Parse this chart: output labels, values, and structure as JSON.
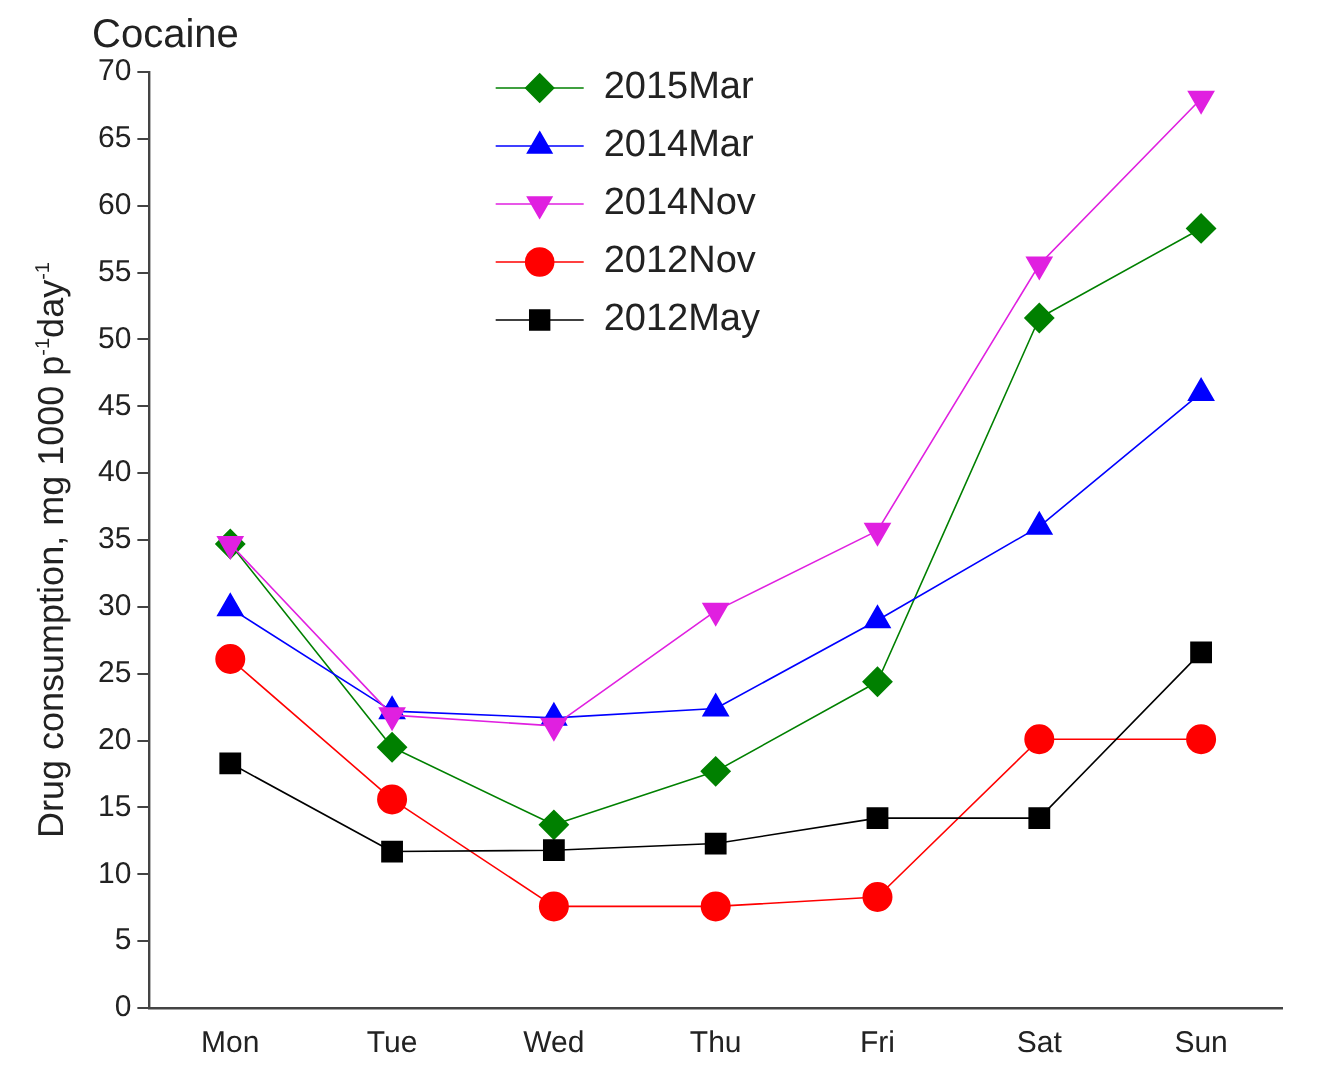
{
  "chart_data": {
    "type": "line",
    "title": "Cocaine",
    "ylabel": "Drug consumption, mg 1000 p$^{-1}$day$^{-1}$",
    "categories": [
      "Mon",
      "Tue",
      "Wed",
      "Thu",
      "Fri",
      "Sat",
      "Sun"
    ],
    "series": [
      {
        "name": "2015Mar",
        "color": "#008000",
        "marker": "diamond",
        "values": [
          34.7,
          19.5,
          13.7,
          17.7,
          24.4,
          51.6,
          58.3
        ]
      },
      {
        "name": "2014Mar",
        "color": "#0000ff",
        "marker": "triangle",
        "values": [
          29.9,
          22.2,
          21.7,
          22.4,
          29.0,
          36.0,
          46.0
        ]
      },
      {
        "name": "2014Nov",
        "color": "#e020e0",
        "marker": "triangle-down",
        "values": [
          34.7,
          21.9,
          21.1,
          29.7,
          35.7,
          55.6,
          68.0
        ]
      },
      {
        "name": "2012Nov",
        "color": "#ff0000",
        "marker": "circle",
        "values": [
          26.1,
          15.6,
          7.6,
          7.6,
          8.3,
          20.1,
          20.1
        ]
      },
      {
        "name": "2012May",
        "color": "#000000",
        "marker": "square",
        "values": [
          18.3,
          11.7,
          11.8,
          12.3,
          14.2,
          14.2,
          26.6
        ]
      }
    ],
    "ylim": [
      0,
      70
    ],
    "yticks": [
      0,
      5,
      10,
      15,
      20,
      25,
      30,
      35,
      40,
      45,
      50,
      55,
      60,
      65,
      70
    ],
    "grid": false,
    "legend": "top",
    "line_style": "solid"
  }
}
